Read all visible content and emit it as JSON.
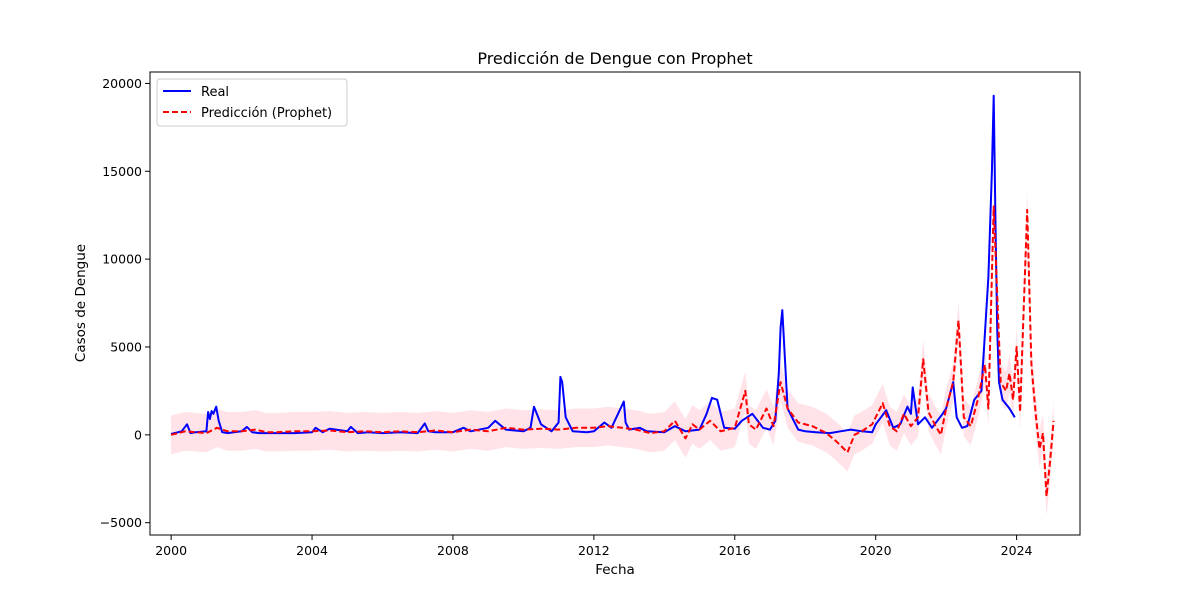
{
  "chart_data": {
    "type": "line",
    "title": "Predicción de Dengue con Prophet",
    "xlabel": "Fecha",
    "ylabel": "Casos de Dengue",
    "xlim": [
      1999.4,
      2025.8
    ],
    "ylim": [
      -5700,
      20650
    ],
    "x_ticks": [
      2000,
      2004,
      2008,
      2012,
      2016,
      2020,
      2024
    ],
    "x_tick_labels": [
      "2000",
      "2004",
      "2008",
      "2012",
      "2016",
      "2020",
      "2024"
    ],
    "y_ticks": [
      -5000,
      0,
      5000,
      10000,
      15000,
      20000
    ],
    "y_tick_labels": [
      "−5000",
      "0",
      "5000",
      "10000",
      "15000",
      "20000"
    ],
    "grid": false,
    "legend_position": "top-left",
    "legend": [
      "Real",
      "Predicción (Prophet)"
    ],
    "colors": {
      "real": "#0000ff",
      "prediction": "#ff0000",
      "interval": "#ffc0cb"
    },
    "series": [
      {
        "name": "Real",
        "style": "solid",
        "x": [
          2000.0,
          2000.3,
          2000.45,
          2000.55,
          2000.7,
          2001.0,
          2001.05,
          2001.1,
          2001.15,
          2001.2,
          2001.28,
          2001.35,
          2001.45,
          2001.6,
          2002.0,
          2002.15,
          2002.3,
          2002.5,
          2003.0,
          2003.5,
          2004.0,
          2004.1,
          2004.3,
          2004.5,
          2005.0,
          2005.1,
          2005.3,
          2005.6,
          2006.0,
          2006.5,
          2007.0,
          2007.2,
          2007.3,
          2007.5,
          2008.0,
          2008.3,
          2008.5,
          2009.0,
          2009.2,
          2009.5,
          2010.0,
          2010.2,
          2010.3,
          2010.5,
          2010.8,
          2011.0,
          2011.05,
          2011.1,
          2011.2,
          2011.4,
          2011.8,
          2012.0,
          2012.3,
          2012.5,
          2012.85,
          2012.9,
          2013.0,
          2013.3,
          2013.5,
          2014.0,
          2014.3,
          2014.6,
          2015.0,
          2015.2,
          2015.35,
          2015.5,
          2015.7,
          2016.0,
          2016.2,
          2016.5,
          2016.8,
          2017.0,
          2017.15,
          2017.25,
          2017.3,
          2017.35,
          2017.5,
          2017.8,
          2018.0,
          2018.3,
          2018.7,
          2019.0,
          2019.3,
          2019.6,
          2019.9,
          2020.0,
          2020.15,
          2020.3,
          2020.5,
          2020.7,
          2020.9,
          2021.0,
          2021.05,
          2021.2,
          2021.4,
          2021.6,
          2021.9,
          2022.0,
          2022.2,
          2022.3,
          2022.45,
          2022.6,
          2022.8,
          2023.0,
          2023.2,
          2023.3,
          2023.35,
          2023.4,
          2023.45,
          2023.5,
          2023.6,
          2023.8,
          2023.95
        ],
        "y": [
          50,
          200,
          600,
          100,
          150,
          200,
          1300,
          900,
          1350,
          1200,
          1600,
          800,
          150,
          100,
          200,
          450,
          150,
          100,
          100,
          100,
          150,
          400,
          150,
          350,
          200,
          450,
          100,
          150,
          100,
          150,
          100,
          650,
          200,
          150,
          150,
          400,
          200,
          400,
          800,
          300,
          200,
          400,
          1600,
          600,
          200,
          700,
          3300,
          3000,
          1000,
          200,
          150,
          200,
          700,
          400,
          1900,
          700,
          300,
          400,
          200,
          150,
          500,
          200,
          300,
          1200,
          2100,
          2000,
          400,
          350,
          800,
          1200,
          400,
          300,
          800,
          3500,
          6100,
          7100,
          1500,
          300,
          200,
          150,
          100,
          200,
          300,
          200,
          150,
          600,
          1000,
          1400,
          400,
          600,
          1600,
          1200,
          2700,
          600,
          1000,
          400,
          1200,
          1500,
          3000,
          1000,
          400,
          500,
          2000,
          2500,
          9000,
          15000,
          19300,
          12000,
          6000,
          3000,
          2000,
          1500,
          1000
        ]
      },
      {
        "name": "Predicción (Prophet)",
        "style": "dashed",
        "x": [
          2000.0,
          2000.2,
          2000.4,
          2000.7,
          2001.0,
          2001.3,
          2001.6,
          2002.0,
          2002.4,
          2002.7,
          2003.0,
          2003.5,
          2004.0,
          2004.5,
          2005.0,
          2005.5,
          2006.0,
          2006.5,
          2007.0,
          2007.5,
          2008.0,
          2008.5,
          2009.0,
          2009.5,
          2010.0,
          2010.5,
          2011.0,
          2011.5,
          2012.0,
          2012.4,
          2012.8,
          2013.2,
          2013.6,
          2014.0,
          2014.3,
          2014.6,
          2014.8,
          2015.0,
          2015.3,
          2015.6,
          2016.0,
          2016.3,
          2016.4,
          2016.6,
          2016.9,
          2017.1,
          2017.3,
          2017.5,
          2017.8,
          2018.2,
          2018.6,
          2018.9,
          2019.2,
          2019.4,
          2019.6,
          2019.9,
          2020.2,
          2020.4,
          2020.6,
          2020.8,
          2021.0,
          2021.2,
          2021.35,
          2021.5,
          2021.7,
          2021.85,
          2022.0,
          2022.2,
          2022.35,
          2022.5,
          2022.7,
          2022.9,
          2023.1,
          2023.2,
          2023.35,
          2023.45,
          2023.55,
          2023.7,
          2023.8,
          2023.9,
          2024.0,
          2024.1,
          2024.2,
          2024.3,
          2024.42,
          2024.55,
          2024.65,
          2024.75,
          2024.85,
          2024.95,
          2025.05
        ],
        "y": [
          0,
          100,
          200,
          150,
          100,
          400,
          200,
          200,
          300,
          150,
          150,
          200,
          200,
          250,
          150,
          200,
          150,
          200,
          150,
          250,
          150,
          300,
          200,
          400,
          300,
          350,
          300,
          400,
          400,
          500,
          400,
          300,
          100,
          200,
          800,
          -200,
          600,
          300,
          800,
          200,
          400,
          2500,
          600,
          300,
          1500,
          500,
          3000,
          1500,
          700,
          500,
          100,
          -400,
          -1000,
          0,
          200,
          600,
          1800,
          500,
          200,
          1200,
          500,
          1000,
          4300,
          1300,
          500,
          0,
          1500,
          3000,
          6500,
          1000,
          500,
          2000,
          4000,
          1500,
          13000,
          8000,
          3000,
          2500,
          3500,
          2000,
          5000,
          1300,
          7000,
          12800,
          4000,
          1000,
          -800,
          100,
          -3500,
          -1500,
          800
        ]
      }
    ],
    "interval": {
      "name": "",
      "half_width": [
        1100,
        1100,
        1100,
        1100,
        1100,
        1100,
        1100,
        1100,
        1100,
        1100,
        1100,
        1100,
        1100,
        1100,
        1100,
        1100,
        1100,
        1100,
        1100,
        1100,
        1100,
        1100,
        1100,
        1100,
        1100,
        1100,
        1100,
        1100,
        1100,
        1100,
        1100,
        1100,
        1100,
        1100,
        1100,
        1100,
        1100,
        1100,
        1100,
        1100,
        1100,
        1100,
        1100,
        1100,
        1100,
        1100,
        1100,
        1100,
        1100,
        1100,
        1100,
        1100,
        1100,
        1100,
        1100,
        1100,
        1100,
        1100,
        1100,
        1100,
        1100,
        1100,
        1100,
        1100,
        1100,
        1100,
        1100,
        1100,
        1100,
        1100,
        1100,
        1100,
        1100,
        1100,
        1100,
        1100,
        1100,
        1100,
        1100,
        1100,
        1100,
        1100,
        1100,
        1100,
        1100,
        1100,
        1100,
        1100,
        1100,
        1100,
        1100
      ]
    }
  }
}
